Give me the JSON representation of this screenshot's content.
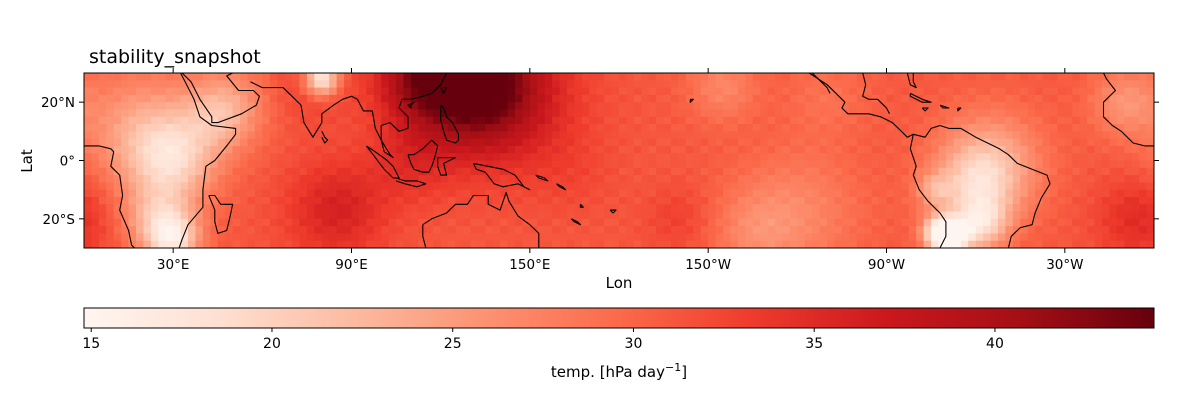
{
  "chart_data": {
    "type": "heatmap",
    "title": "stability_snapshot",
    "xlabel": "Lon",
    "ylabel": "Lat",
    "projection": "PlateCarree (central longitude 180)",
    "lon_range": [
      0,
      360
    ],
    "lat_range": [
      -30,
      30
    ],
    "x_ticks": [
      {
        "lon": 30,
        "label": "30°E"
      },
      {
        "lon": 90,
        "label": "90°E"
      },
      {
        "lon": 150,
        "label": "150°E"
      },
      {
        "lon": 210,
        "label": "150°W"
      },
      {
        "lon": 270,
        "label": "90°W"
      },
      {
        "lon": 330,
        "label": "30°W"
      }
    ],
    "y_ticks": [
      {
        "lat": 20,
        "label": "20°N"
      },
      {
        "lat": 0,
        "label": "0°"
      },
      {
        "lat": -20,
        "label": "20°S"
      }
    ],
    "colormap": "Reds",
    "colormap_stops": [
      "#fff5f0",
      "#fee0d2",
      "#fcbba1",
      "#fc9272",
      "#fb6a4a",
      "#ef3b2c",
      "#cb181d",
      "#a50f15",
      "#67000d"
    ],
    "value_range": [
      14.8,
      44.4
    ],
    "grid": false,
    "colorbar": {
      "placement": "bottom",
      "ticks": [
        15,
        20,
        25,
        30,
        35,
        40
      ],
      "label_text": "temp. [hPa day",
      "label_exponent": "−1",
      "label_close": "]"
    },
    "background_value": 31,
    "anomalies": [
      {
        "lon": 130,
        "lat": 27,
        "radius": 14,
        "value": 43
      },
      {
        "lon": 140,
        "lat": 22,
        "radius": 18,
        "value": 37
      },
      {
        "lon": 112,
        "lat": 28,
        "radius": 10,
        "value": 38
      },
      {
        "lon": 20,
        "lat": 10,
        "radius": 14,
        "value": 24
      },
      {
        "lon": 30,
        "lat": 0,
        "radius": 10,
        "value": 22
      },
      {
        "lon": 45,
        "lat": 15,
        "radius": 8,
        "value": 26
      },
      {
        "lon": 25,
        "lat": -20,
        "radius": 8,
        "value": 23
      },
      {
        "lon": 30,
        "lat": -27,
        "radius": 6,
        "value": 20
      },
      {
        "lon": 50,
        "lat": 20,
        "radius": 10,
        "value": 27
      },
      {
        "lon": 75,
        "lat": 25,
        "radius": 10,
        "value": 33
      },
      {
        "lon": 85,
        "lat": -17,
        "radius": 12,
        "value": 36
      },
      {
        "lon": 110,
        "lat": 0,
        "radius": 10,
        "value": 34
      },
      {
        "lon": 165,
        "lat": -5,
        "radius": 10,
        "value": 32
      },
      {
        "lon": 240,
        "lat": -18,
        "radius": 15,
        "value": 27
      },
      {
        "lon": 225,
        "lat": -25,
        "radius": 10,
        "value": 28
      },
      {
        "lon": 215,
        "lat": 25,
        "radius": 8,
        "value": 27
      },
      {
        "lon": 250,
        "lat": 22,
        "radius": 10,
        "value": 29
      },
      {
        "lon": 305,
        "lat": 0,
        "radius": 12,
        "value": 24
      },
      {
        "lon": 300,
        "lat": -10,
        "radius": 10,
        "value": 23
      },
      {
        "lon": 288,
        "lat": -25,
        "radius": 4,
        "value": 15
      },
      {
        "lon": 293,
        "lat": -26,
        "radius": 4,
        "value": 18
      },
      {
        "lon": 302,
        "lat": -22,
        "radius": 6,
        "value": 22
      },
      {
        "lon": 286,
        "lat": -10,
        "radius": 4,
        "value": 26
      },
      {
        "lon": 355,
        "lat": -20,
        "radius": 10,
        "value": 35
      },
      {
        "lon": 350,
        "lat": 20,
        "radius": 8,
        "value": 26
      },
      {
        "lon": 200,
        "lat": -20,
        "radius": 8,
        "value": 33
      },
      {
        "lon": 80,
        "lat": 28,
        "radius": 4,
        "value": 16
      }
    ],
    "coastlines": [
      [
        [
          0,
          5
        ],
        [
          5,
          5
        ],
        [
          9,
          4
        ],
        [
          10,
          3
        ],
        [
          9,
          -2
        ],
        [
          12,
          -5
        ],
        [
          13,
          -12
        ],
        [
          12,
          -17
        ],
        [
          15,
          -24
        ],
        [
          16,
          -29
        ],
        [
          17,
          -30
        ]
      ],
      [
        [
          16,
          30
        ],
        [
          20,
          30
        ],
        [
          30,
          31
        ],
        [
          32,
          31
        ],
        [
          34,
          27
        ],
        [
          37,
          21
        ],
        [
          39,
          15
        ],
        [
          43,
          12
        ],
        [
          51,
          11
        ],
        [
          51,
          9
        ],
        [
          48,
          5
        ],
        [
          44,
          0
        ],
        [
          41,
          -2
        ],
        [
          40,
          -10
        ],
        [
          40,
          -16
        ],
        [
          35,
          -22
        ],
        [
          33,
          -27
        ],
        [
          32,
          -30
        ]
      ],
      [
        [
          33,
          30
        ],
        [
          36,
          27
        ],
        [
          39,
          21
        ],
        [
          43,
          15
        ],
        [
          43,
          13
        ],
        [
          45,
          13
        ],
        [
          53,
          16
        ],
        [
          58,
          19
        ],
        [
          59,
          22
        ],
        [
          57,
          24
        ],
        [
          52,
          24
        ],
        [
          48,
          29
        ],
        [
          50,
          30
        ]
      ],
      [
        [
          56,
          27
        ],
        [
          60,
          25
        ],
        [
          67,
          25
        ],
        [
          70,
          22
        ],
        [
          73,
          19
        ],
        [
          74,
          13
        ],
        [
          77,
          8
        ],
        [
          80,
          13
        ],
        [
          80,
          16
        ],
        [
          84,
          19
        ],
        [
          87,
          21
        ],
        [
          90,
          22
        ],
        [
          92,
          21
        ],
        [
          94,
          17
        ],
        [
          97,
          17
        ],
        [
          98,
          11
        ],
        [
          100,
          7
        ],
        [
          103,
          2
        ],
        [
          104,
          1
        ],
        [
          101,
          3
        ],
        [
          100,
          7
        ],
        [
          100,
          12
        ],
        [
          103,
          13
        ],
        [
          106,
          10
        ],
        [
          109,
          11
        ],
        [
          109,
          15
        ],
        [
          106,
          18
        ],
        [
          107,
          21
        ],
        [
          110,
          21
        ],
        [
          114,
          22
        ],
        [
          117,
          23
        ],
        [
          120,
          26
        ],
        [
          122,
          30
        ]
      ],
      [
        [
          80,
          10
        ],
        [
          81,
          8
        ],
        [
          82,
          7
        ],
        [
          81,
          6
        ],
        [
          80,
          8
        ]
      ],
      [
        [
          95,
          5
        ],
        [
          98,
          3
        ],
        [
          102,
          0
        ],
        [
          104,
          -2
        ],
        [
          106,
          -6
        ],
        [
          104,
          -6
        ],
        [
          101,
          -3
        ],
        [
          98,
          1
        ],
        [
          95,
          5
        ]
      ],
      [
        [
          105,
          -6
        ],
        [
          108,
          -7
        ],
        [
          112,
          -7
        ],
        [
          115,
          -8
        ],
        [
          112,
          -9
        ],
        [
          108,
          -8
        ],
        [
          105,
          -7
        ]
      ],
      [
        [
          109,
          2
        ],
        [
          111,
          2
        ],
        [
          114,
          4
        ],
        [
          117,
          7
        ],
        [
          119,
          5
        ],
        [
          118,
          1
        ],
        [
          117,
          -2
        ],
        [
          116,
          -4
        ],
        [
          114,
          -4
        ],
        [
          111,
          -3
        ],
        [
          110,
          -1
        ],
        [
          109,
          2
        ]
      ],
      [
        [
          119,
          1
        ],
        [
          125,
          1
        ],
        [
          121,
          -1
        ],
        [
          122,
          -5
        ],
        [
          120,
          -5
        ],
        [
          119,
          -2
        ],
        [
          119,
          1
        ]
      ],
      [
        [
          120,
          19
        ],
        [
          121,
          18
        ],
        [
          122,
          15
        ],
        [
          124,
          13
        ],
        [
          126,
          9
        ],
        [
          126,
          7
        ],
        [
          125,
          6
        ],
        [
          122,
          7
        ],
        [
          121,
          10
        ],
        [
          120,
          14
        ],
        [
          120,
          19
        ]
      ],
      [
        [
          120,
          25
        ],
        [
          121,
          23
        ],
        [
          122,
          25
        ],
        [
          121,
          25
        ]
      ],
      [
        [
          110,
          19
        ],
        [
          111,
          20
        ],
        [
          109,
          19
        ],
        [
          110,
          18
        ],
        [
          110,
          19
        ]
      ],
      [
        [
          131,
          -1
        ],
        [
          136,
          -2
        ],
        [
          141,
          -3
        ],
        [
          145,
          -5
        ],
        [
          148,
          -9
        ],
        [
          150,
          -10
        ],
        [
          146,
          -8
        ],
        [
          141,
          -9
        ],
        [
          138,
          -8
        ],
        [
          135,
          -4
        ],
        [
          132,
          -3
        ],
        [
          131,
          -1
        ]
      ],
      [
        [
          114,
          -22
        ],
        [
          114,
          -26
        ],
        [
          115,
          -30
        ],
        [
          116,
          -34
        ]
      ],
      [
        [
          114,
          -22
        ],
        [
          117,
          -20
        ],
        [
          122,
          -18
        ],
        [
          125,
          -15
        ],
        [
          129,
          -15
        ],
        [
          131,
          -12
        ],
        [
          136,
          -12
        ],
        [
          136,
          -15
        ],
        [
          140,
          -17
        ],
        [
          142,
          -11
        ],
        [
          143,
          -14
        ],
        [
          146,
          -19
        ],
        [
          150,
          -22
        ],
        [
          153,
          -25
        ],
        [
          153,
          -30
        ]
      ],
      [
        [
          152,
          -5
        ],
        [
          155,
          -6
        ],
        [
          156,
          -7
        ],
        [
          153,
          -6
        ],
        [
          152,
          -5
        ]
      ],
      [
        [
          159,
          -8
        ],
        [
          161,
          -9
        ],
        [
          162,
          -10
        ],
        [
          160,
          -9
        ],
        [
          159,
          -8
        ]
      ],
      [
        [
          164,
          -20
        ],
        [
          166,
          -21
        ],
        [
          167,
          -22
        ],
        [
          165,
          -21
        ],
        [
          164,
          -20
        ]
      ],
      [
        [
          177,
          -17
        ],
        [
          178,
          -18
        ],
        [
          179,
          -17
        ],
        [
          177,
          -17
        ]
      ],
      [
        [
          167,
          -15
        ],
        [
          168,
          -16
        ],
        [
          167,
          -16
        ],
        [
          167,
          -15
        ]
      ],
      [
        [
          204,
          21
        ],
        [
          205,
          21
        ],
        [
          204,
          20
        ],
        [
          204,
          21
        ]
      ],
      [
        [
          244,
          30
        ],
        [
          250,
          26
        ],
        [
          253,
          23
        ],
        [
          256,
          20
        ],
        [
          255,
          18
        ],
        [
          257,
          16
        ],
        [
          264,
          16
        ],
        [
          268,
          15
        ],
        [
          272,
          13
        ],
        [
          275,
          10
        ],
        [
          277,
          8
        ],
        [
          279,
          9
        ],
        [
          283,
          8
        ],
        [
          285,
          11
        ],
        [
          288,
          12
        ],
        [
          291,
          11
        ],
        [
          295,
          11
        ],
        [
          300,
          8
        ],
        [
          304,
          6
        ],
        [
          308,
          4
        ],
        [
          311,
          2
        ],
        [
          314,
          -1
        ],
        [
          319,
          -3
        ],
        [
          324,
          -5
        ],
        [
          325,
          -8
        ],
        [
          322,
          -13
        ],
        [
          320,
          -18
        ],
        [
          319,
          -22
        ],
        [
          315,
          -23
        ],
        [
          312,
          -26
        ],
        [
          311,
          -30
        ]
      ],
      [
        [
          279,
          9
        ],
        [
          278,
          4
        ],
        [
          279,
          1
        ],
        [
          280,
          -2
        ],
        [
          279,
          -5
        ],
        [
          281,
          -10
        ],
        [
          284,
          -14
        ],
        [
          288,
          -18
        ],
        [
          290,
          -21
        ],
        [
          290,
          -26
        ],
        [
          288,
          -30
        ]
      ],
      [
        [
          245,
          30
        ],
        [
          247,
          28
        ],
        [
          250,
          25
        ],
        [
          251,
          23
        ]
      ],
      [
        [
          262,
          30
        ],
        [
          263,
          26
        ],
        [
          262,
          22
        ],
        [
          264,
          21
        ],
        [
          267,
          21
        ],
        [
          270,
          18
        ],
        [
          271,
          16
        ]
      ],
      [
        [
          278,
          23
        ],
        [
          282,
          21
        ],
        [
          285,
          20
        ],
        [
          282,
          20
        ],
        [
          278,
          22
        ],
        [
          278,
          23
        ]
      ],
      [
        [
          288,
          19
        ],
        [
          291,
          18
        ],
        [
          289,
          18
        ],
        [
          288,
          19
        ]
      ],
      [
        [
          282,
          18
        ],
        [
          284,
          18
        ],
        [
          283,
          17
        ],
        [
          282,
          18
        ]
      ],
      [
        [
          294,
          18
        ],
        [
          295,
          18
        ],
        [
          294,
          17
        ],
        [
          294,
          18
        ]
      ],
      [
        [
          279,
          30
        ],
        [
          279,
          27
        ],
        [
          280,
          25
        ],
        [
          278,
          26
        ],
        [
          277,
          30
        ]
      ],
      [
        [
          343,
          30
        ],
        [
          344,
          28
        ],
        [
          347,
          24
        ],
        [
          343,
          20
        ],
        [
          343,
          15
        ],
        [
          346,
          12
        ],
        [
          349,
          10
        ],
        [
          353,
          6
        ],
        [
          357,
          5
        ],
        [
          360,
          5
        ]
      ],
      [
        [
          42,
          -12
        ],
        [
          44,
          -12
        ],
        [
          46,
          -15
        ],
        [
          50,
          -15
        ],
        [
          49,
          -20
        ],
        [
          48,
          -24
        ],
        [
          45,
          -25
        ],
        [
          44,
          -21
        ],
        [
          44,
          -17
        ],
        [
          42,
          -12
        ]
      ]
    ]
  }
}
